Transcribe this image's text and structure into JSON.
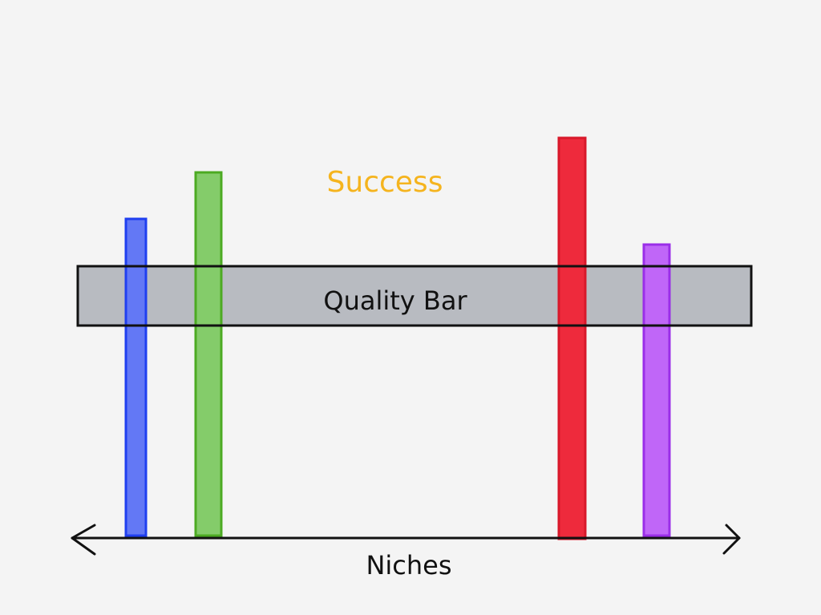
{
  "title": "Success",
  "quality_bar": {
    "label": "Quality Bar"
  },
  "axis": {
    "label": "Niches"
  }
}
